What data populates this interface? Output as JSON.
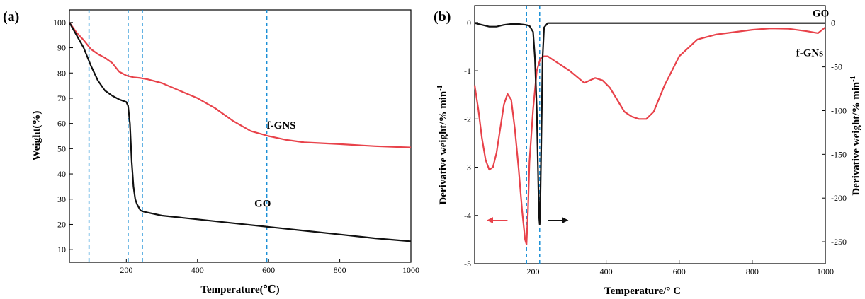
{
  "chart_data": [
    {
      "panel_label": "(a)",
      "type": "line",
      "xlabel": "Temperature(℃)",
      "ylabel": "Weight(%)",
      "xlim": [
        40,
        1000
      ],
      "ylim": [
        5,
        105
      ],
      "xticks": [
        "200",
        "400",
        "600",
        "800",
        "1000"
      ],
      "yticks": [
        "10",
        "20",
        "30",
        "40",
        "50",
        "60",
        "70",
        "80",
        "90",
        "100"
      ],
      "xtick_values": [
        200,
        400,
        600,
        800,
        1000
      ],
      "ytick_values": [
        10,
        20,
        30,
        40,
        50,
        60,
        70,
        80,
        90,
        100
      ],
      "vlines": [
        95,
        205,
        245,
        595
      ],
      "vline_color": "#1a8fd6",
      "series": [
        {
          "name": "f-GNS",
          "color": "#e8424a",
          "label_at": [
            595,
            58
          ],
          "x": [
            40,
            60,
            80,
            100,
            120,
            140,
            160,
            180,
            200,
            220,
            240,
            260,
            300,
            350,
            400,
            450,
            500,
            550,
            600,
            650,
            700,
            800,
            900,
            1000
          ],
          "y": [
            100,
            96,
            93,
            89.5,
            87.5,
            86,
            84,
            80.5,
            79,
            78.3,
            78,
            77.5,
            76,
            73,
            70,
            66,
            61,
            57,
            55,
            53.5,
            52.5,
            51.8,
            51,
            50.5
          ]
        },
        {
          "name": "GO",
          "color": "#111111",
          "label_at": [
            560,
            27
          ],
          "x": [
            40,
            60,
            80,
            100,
            120,
            140,
            160,
            180,
            200,
            205,
            210,
            215,
            220,
            225,
            230,
            240,
            250,
            300,
            400,
            500,
            600,
            700,
            800,
            900,
            1000
          ],
          "y": [
            100,
            95,
            90,
            83,
            77,
            73,
            71,
            69.5,
            68.5,
            67,
            60,
            45,
            35,
            30,
            28,
            25.5,
            25,
            23.5,
            22,
            20.5,
            19,
            17.5,
            16,
            14.5,
            13.3
          ]
        }
      ]
    },
    {
      "panel_label": "(b)",
      "type": "line",
      "xlabel": "Temperature/° C",
      "ylabel": "Derivative weight/% min",
      "ylabel_sup": "-1",
      "y2label": "Derivative weight/% min",
      "y2label_sup": "-1",
      "xlim": [
        40,
        1000
      ],
      "ylim": [
        -5,
        0.35
      ],
      "y2lim": [
        -275,
        20
      ],
      "xticks": [
        "200",
        "400",
        "600",
        "800",
        "1000"
      ],
      "yticks": [
        "0",
        "-1",
        "-2",
        "-3",
        "-4",
        "-5"
      ],
      "y2ticks": [
        "0",
        "-50",
        "-100",
        "-150",
        "-200",
        "-250"
      ],
      "xtick_values": [
        200,
        400,
        600,
        800,
        1000
      ],
      "ytick_values": [
        0,
        -1,
        -2,
        -3,
        -4,
        -5
      ],
      "y2tick_values": [
        0,
        -50,
        -100,
        -150,
        -200,
        -250
      ],
      "vlines": [
        182,
        218
      ],
      "vline_color": "#1a8fd6",
      "arrows": [
        {
          "color": "#e8424a",
          "from": [
            130,
            -4.1
          ],
          "to": [
            75,
            -4.1
          ]
        },
        {
          "color": "#111111",
          "from": [
            240,
            -4.1
          ],
          "to": [
            295,
            -4.1
          ]
        }
      ],
      "series": [
        {
          "name": "f-GNs",
          "axis": "left",
          "color": "#e8424a",
          "label_at": [
            920,
            -0.7
          ],
          "x": [
            40,
            50,
            60,
            70,
            80,
            90,
            100,
            110,
            120,
            130,
            140,
            150,
            160,
            170,
            178,
            182,
            186,
            190,
            200,
            210,
            220,
            230,
            240,
            260,
            300,
            340,
            370,
            390,
            410,
            430,
            450,
            470,
            490,
            510,
            530,
            560,
            600,
            650,
            700,
            750,
            800,
            850,
            900,
            950,
            980,
            1000
          ],
          "y": [
            -1.3,
            -1.8,
            -2.4,
            -2.85,
            -3.05,
            -3.0,
            -2.7,
            -2.2,
            -1.7,
            -1.48,
            -1.6,
            -2.2,
            -3.0,
            -3.9,
            -4.5,
            -4.6,
            -3.9,
            -2.9,
            -1.8,
            -1.0,
            -0.75,
            -0.7,
            -0.7,
            -0.8,
            -1.0,
            -1.25,
            -1.15,
            -1.2,
            -1.35,
            -1.6,
            -1.85,
            -1.95,
            -2.0,
            -2.0,
            -1.85,
            -1.3,
            -0.7,
            -0.35,
            -0.25,
            -0.2,
            -0.15,
            -0.12,
            -0.13,
            -0.18,
            -0.22,
            -0.1
          ]
        },
        {
          "name": "GO",
          "axis": "right",
          "color": "#111111",
          "label_at": [
            965,
            0.12
          ],
          "x": [
            40,
            60,
            80,
            100,
            120,
            140,
            160,
            180,
            190,
            200,
            205,
            210,
            213,
            216,
            218,
            220,
            223,
            226,
            230,
            240,
            260,
            300,
            400,
            600,
            800,
            1000
          ],
          "y": [
            0,
            -2,
            -4,
            -4,
            -2,
            -1,
            -1,
            -2,
            -3,
            -10,
            -40,
            -100,
            -160,
            -220,
            -230,
            -200,
            -120,
            -40,
            -5,
            0,
            0,
            0,
            0,
            0,
            0,
            0
          ]
        }
      ]
    }
  ]
}
